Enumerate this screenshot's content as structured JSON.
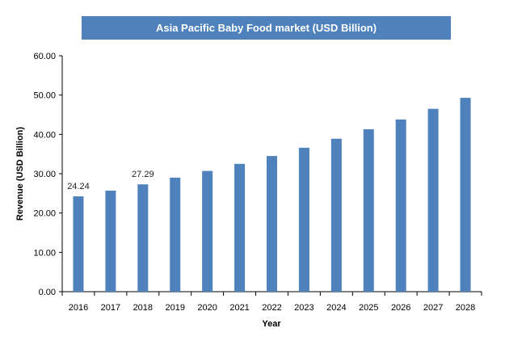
{
  "chart_data": {
    "type": "bar",
    "title": "Asia Pacific Baby Food market (USD Billion)",
    "xlabel": "Year",
    "ylabel": "Revenue (USD Billion)",
    "ylim": [
      0,
      60
    ],
    "yticks": [
      "0.00",
      "10.00",
      "20.00",
      "30.00",
      "40.00",
      "50.00",
      "60.00"
    ],
    "categories": [
      "2016",
      "2017",
      "2018",
      "2019",
      "2020",
      "2021",
      "2022",
      "2023",
      "2024",
      "2025",
      "2026",
      "2027",
      "2028"
    ],
    "values": [
      24.24,
      25.7,
      27.29,
      29.0,
      30.7,
      32.5,
      34.5,
      36.6,
      38.9,
      41.3,
      43.8,
      46.5,
      49.3
    ],
    "data_labels": [
      {
        "category": "2016",
        "text": "24.24"
      },
      {
        "category": "2018",
        "text": "27.29"
      }
    ],
    "bar_color": "#4f81bd",
    "grid": false,
    "legend": "none"
  }
}
